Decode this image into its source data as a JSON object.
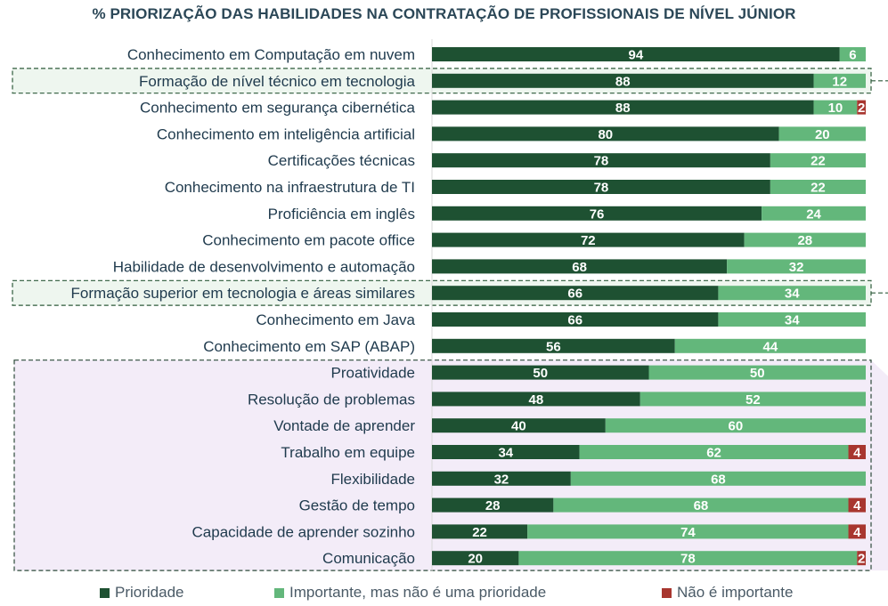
{
  "colors": {
    "priority": "#1e5132",
    "important": "#63b77b",
    "not_important": "#a8362f",
    "title": "#2b4757",
    "highlight_green": "#eef6ef",
    "highlight_purple": "#f3ecf8"
  },
  "chart_data": {
    "type": "bar",
    "orientation": "horizontal",
    "stacked": true,
    "title": "% PRIORIZAÇÃO DAS HABILIDADES NA CONTRATAÇÃO DE PROFISSIONAIS DE NÍVEL JÚNIOR",
    "xlim": [
      0,
      100
    ],
    "legend_position": "bottom",
    "categories": [
      "Conhecimento em Computação em nuvem",
      "Formação de nível técnico em tecnologia",
      "Conhecimento em segurança cibernética",
      "Conhecimento em inteligência artificial",
      "Certificações técnicas",
      "Conhecimento na infraestrutura de TI",
      "Proficiência em inglês",
      "Conhecimento em pacote office",
      "Habilidade de desenvolvimento e automação",
      "Formação superior em tecnologia e áreas similares",
      "Conhecimento em Java",
      "Conhecimento em SAP (ABAP)",
      "Proatividade",
      "Resolução de problemas",
      "Vontade de aprender",
      "Trabalho em equipe",
      "Flexibilidade",
      "Gestão de tempo",
      "Capacidade de aprender sozinho",
      "Comunicação"
    ],
    "series": [
      {
        "name": "Prioridade",
        "values": [
          94,
          88,
          88,
          80,
          78,
          78,
          76,
          72,
          68,
          66,
          66,
          56,
          50,
          48,
          40,
          34,
          32,
          28,
          22,
          20
        ]
      },
      {
        "name": "Importante, mas não é uma prioridade",
        "values": [
          6,
          12,
          10,
          20,
          22,
          22,
          24,
          28,
          32,
          34,
          34,
          44,
          50,
          52,
          60,
          62,
          68,
          68,
          74,
          78
        ]
      },
      {
        "name": "Não é importante",
        "values": [
          0,
          0,
          2,
          0,
          0,
          0,
          0,
          0,
          0,
          0,
          0,
          0,
          0,
          0,
          0,
          4,
          0,
          4,
          4,
          2
        ]
      }
    ],
    "highlighted_groups": [
      {
        "kind": "green",
        "categories": [
          "Formação de nível técnico em tecnologia"
        ]
      },
      {
        "kind": "green",
        "categories": [
          "Formação superior em tecnologia e áreas similares"
        ]
      },
      {
        "kind": "purple",
        "categories": [
          "Proatividade",
          "Resolução de problemas",
          "Vontade de aprender",
          "Trabalho em equipe",
          "Flexibilidade",
          "Gestão de tempo",
          "Capacidade de aprender sozinho",
          "Comunicação"
        ]
      }
    ]
  }
}
